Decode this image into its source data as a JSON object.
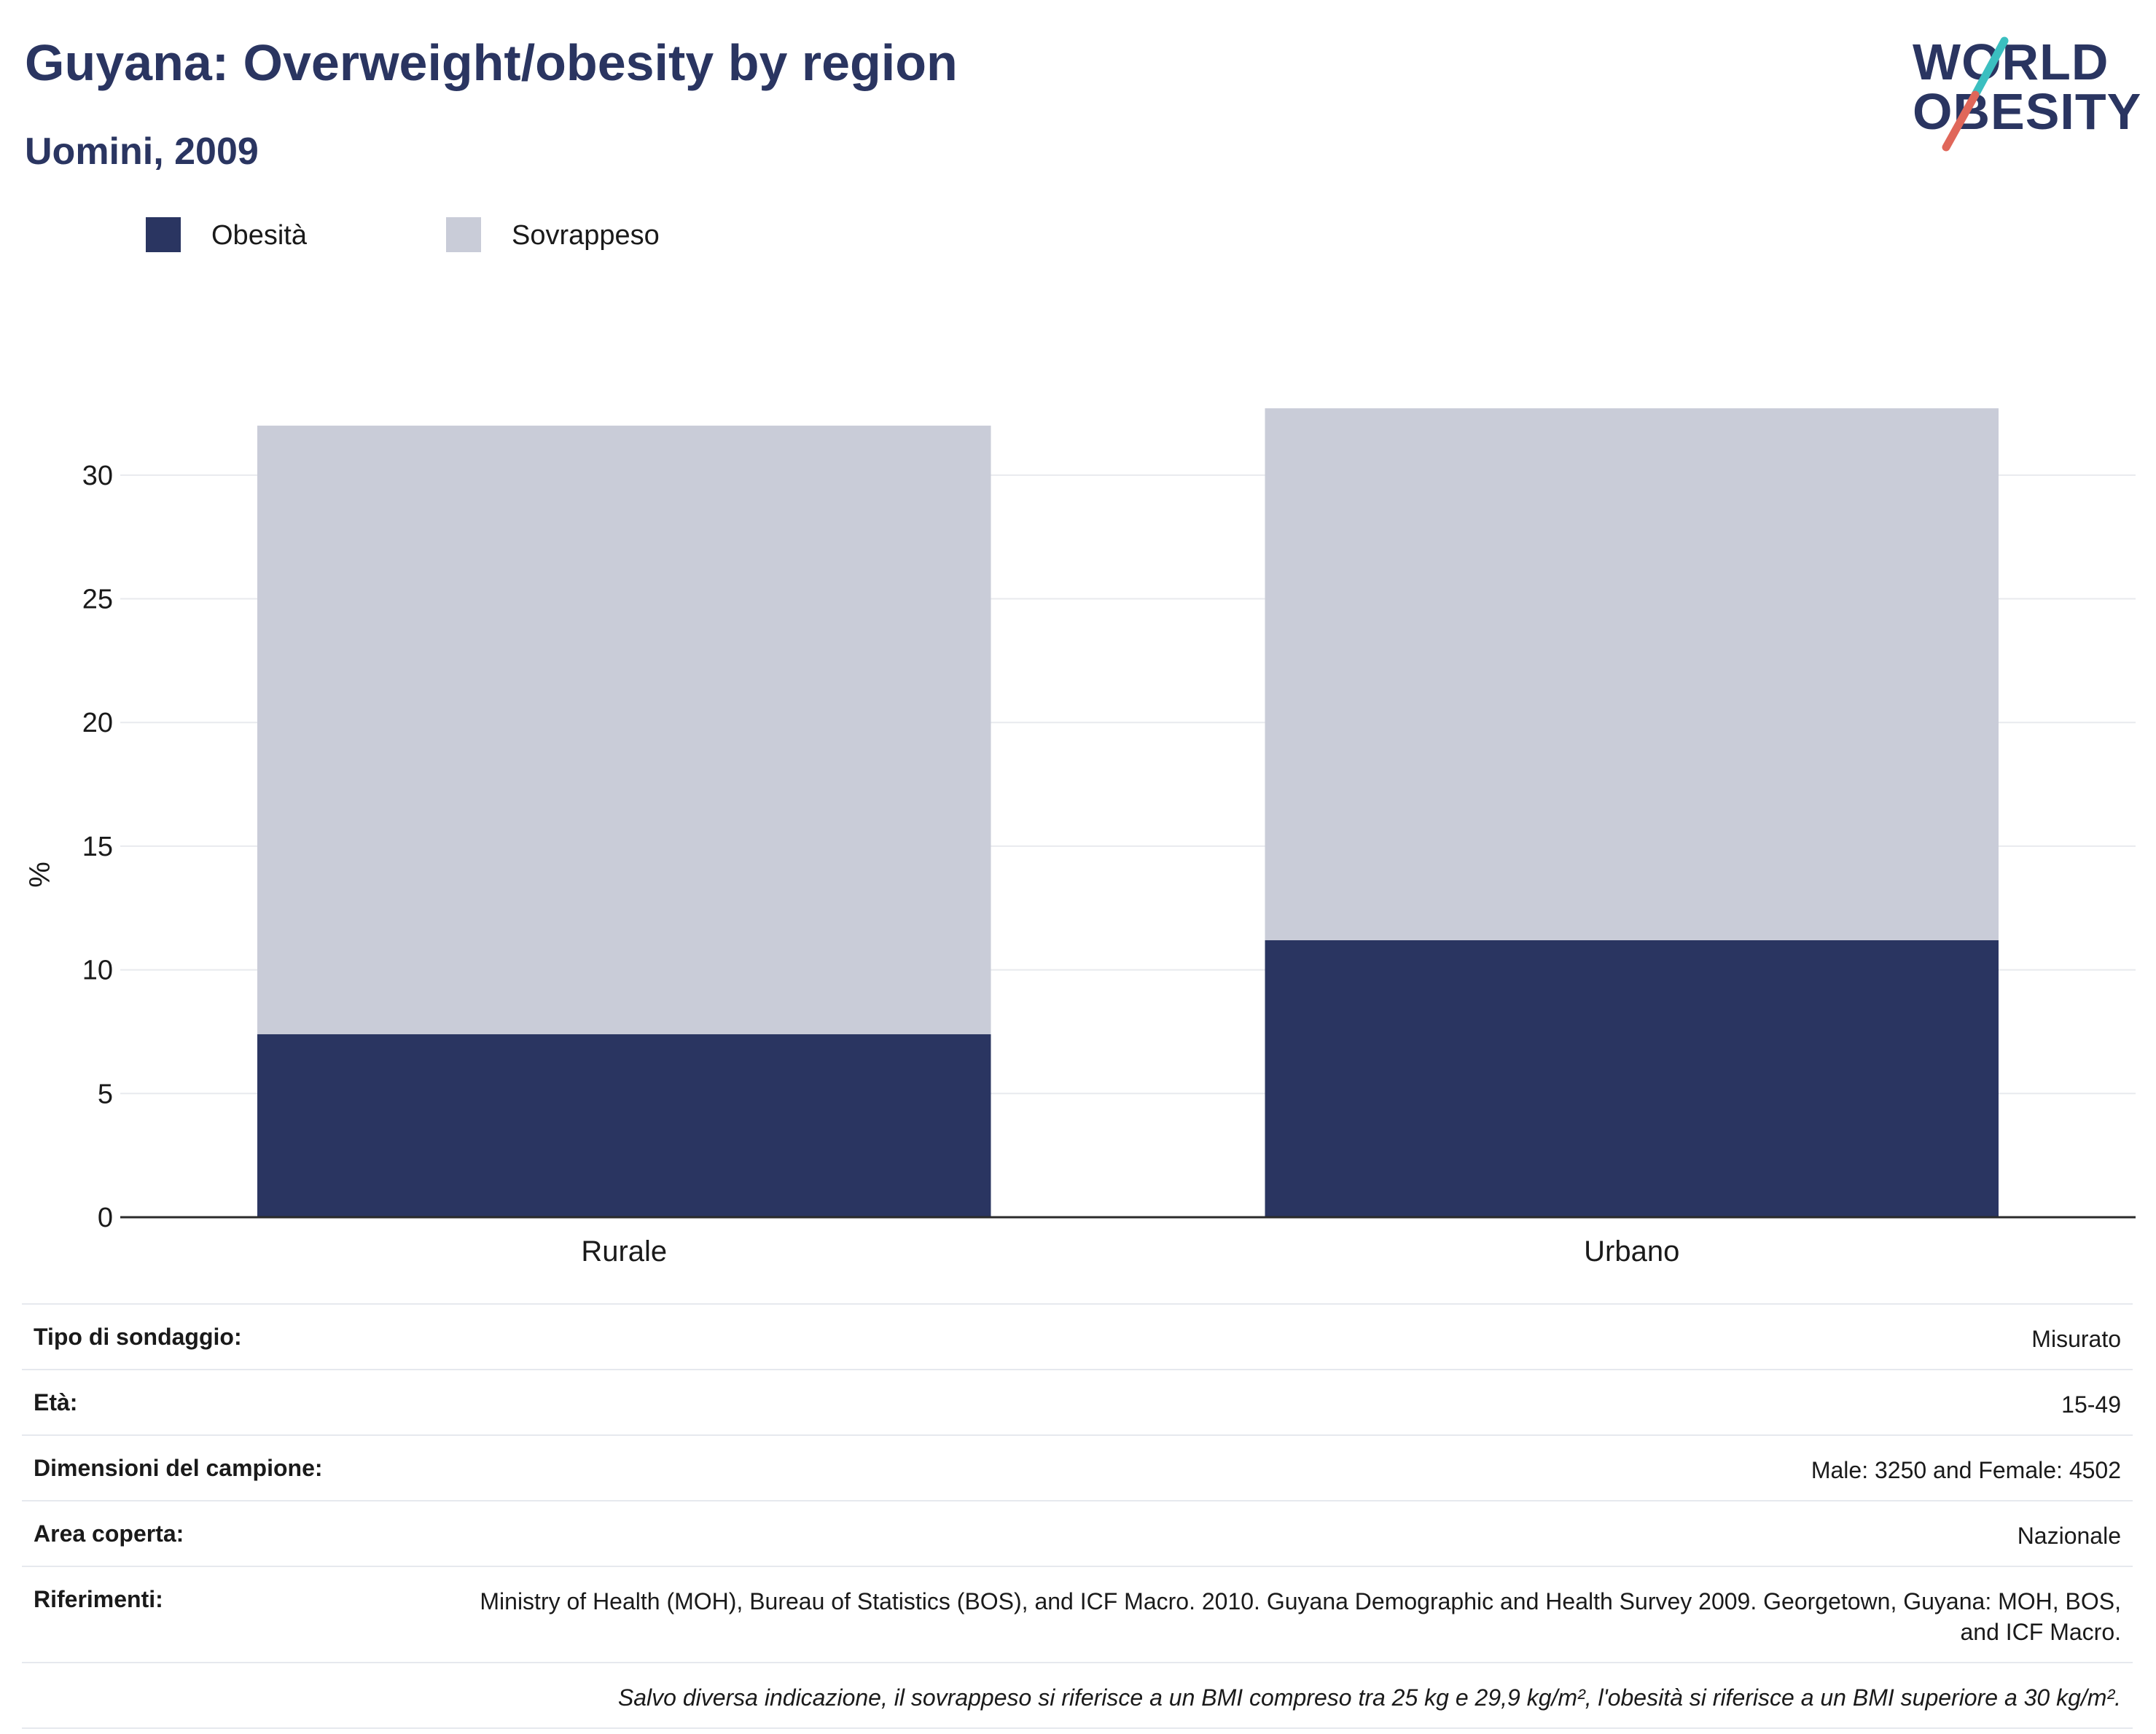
{
  "header": {
    "title": "Guyana: Overweight/obesity by region",
    "subtitle": "Uomini, 2009"
  },
  "logo": {
    "line1": "WORLD",
    "line2": "OBESITY",
    "colors": {
      "text": "#2a3561",
      "slash_top": "#3bbfc0",
      "slash_bottom": "#e0675a"
    }
  },
  "legend": [
    {
      "label": "Obesità",
      "color": "#2a3561"
    },
    {
      "label": "Sovrappeso",
      "color": "#c9ccd8"
    }
  ],
  "chart_data": {
    "type": "bar",
    "stacked": true,
    "categories": [
      "Rurale",
      "Urbano"
    ],
    "series": [
      {
        "name": "Obesità",
        "color": "#2a3561",
        "values": [
          7.4,
          11.2
        ]
      },
      {
        "name": "Sovrappeso",
        "color": "#c9ccd8",
        "values": [
          24.6,
          21.5
        ]
      }
    ],
    "ylabel": "%",
    "ylim": [
      0,
      33
    ],
    "yticks": [
      0,
      5,
      10,
      15,
      20,
      25,
      30
    ],
    "grid": true
  },
  "meta": {
    "rows": [
      {
        "label": "Tipo di sondaggio:",
        "value": "Misurato"
      },
      {
        "label": "Età:",
        "value": "15-49"
      },
      {
        "label": "Dimensioni del campione:",
        "value": "Male: 3250 and Female: 4502"
      },
      {
        "label": "Area coperta:",
        "value": "Nazionale"
      },
      {
        "label": "Riferimenti:",
        "value": "Ministry of Health (MOH), Bureau of Statistics (BOS), and ICF Macro. 2010. Guyana Demographic and Health Survey 2009. Georgetown, Guyana: MOH, BOS, and ICF Macro."
      }
    ],
    "note": "Salvo diversa indicazione, il sovrappeso si riferisce a un BMI compreso tra 25 kg e 29,9 kg/m², l'obesità si riferisce a un BMI superiore a 30 kg/m²."
  }
}
